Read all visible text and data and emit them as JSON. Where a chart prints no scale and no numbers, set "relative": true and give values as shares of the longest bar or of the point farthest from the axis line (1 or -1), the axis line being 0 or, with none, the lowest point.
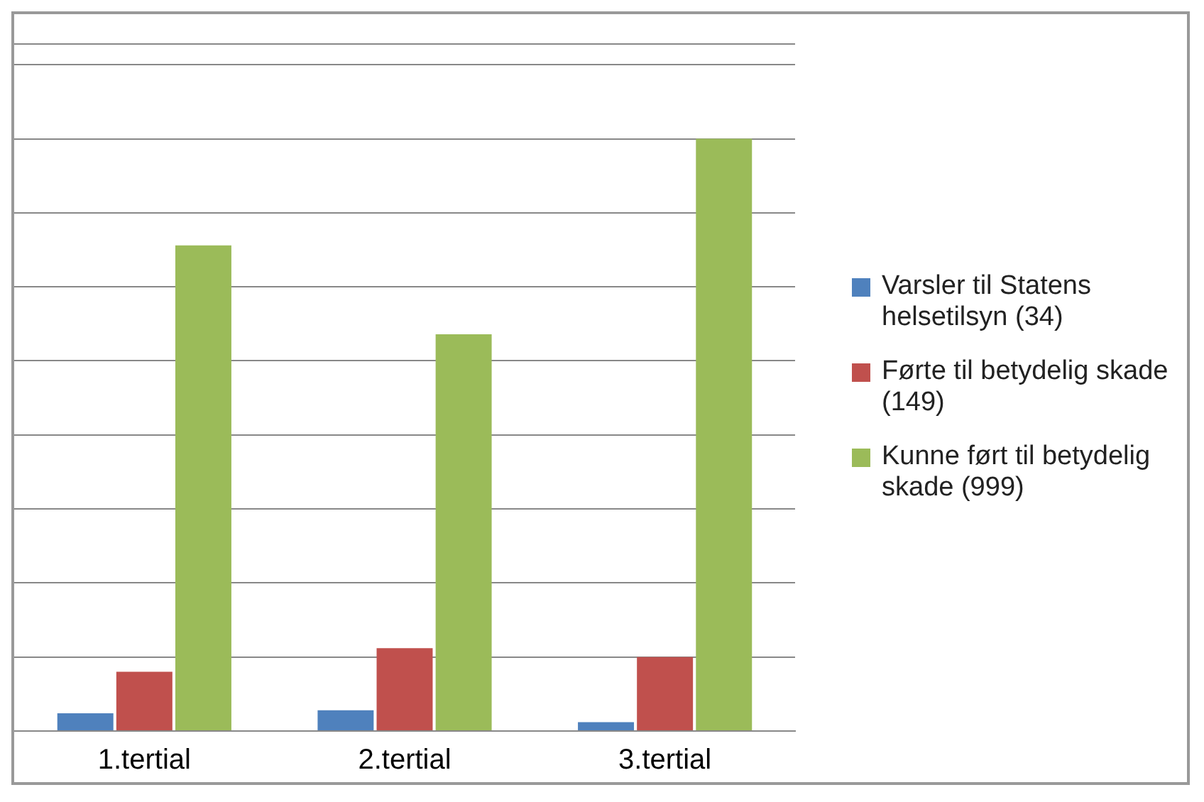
{
  "chart_data": {
    "type": "bar",
    "relative": true,
    "categories": [
      "1.tertial",
      "2.tertial",
      "3.tertial"
    ],
    "series": [
      {
        "name": "Varsler til Statens helsetilsyn (34)",
        "color": "#4f81bd",
        "values": [
          0.03,
          0.035,
          0.015
        ]
      },
      {
        "name": "Førte til betydelig skade (149)",
        "color": "#c0504d",
        "values": [
          0.1,
          0.14,
          0.125
        ]
      },
      {
        "name": "Kunne ført til betydelig skade (999)",
        "color": "#9bbb59",
        "values": [
          0.82,
          0.67,
          1
        ]
      }
    ],
    "grid": "y",
    "legend": "right"
  }
}
